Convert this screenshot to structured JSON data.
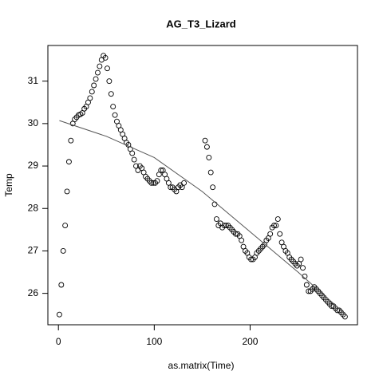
{
  "chart_data": {
    "type": "scatter",
    "title": "AG_T3_Lizard",
    "x_label": "as.matrix(Time)",
    "y_label": "Temp",
    "xlim": [
      -11,
      312
    ],
    "ylim": [
      25.26,
      31.84
    ],
    "xticks": [
      0,
      100,
      200
    ],
    "yticks": [
      26,
      27,
      28,
      29,
      30,
      31
    ],
    "series": [
      {
        "color": "#000000",
        "marker": "open-circle",
        "x": [
          1,
          3,
          5,
          7,
          9,
          11,
          13,
          15,
          17,
          19,
          21,
          23,
          25,
          27,
          29,
          31,
          33,
          35,
          37,
          39,
          41,
          43,
          45,
          47,
          49,
          51,
          53,
          55,
          57,
          59,
          61,
          63,
          65,
          67,
          69,
          71,
          73,
          75,
          77,
          79,
          81,
          83,
          85,
          87,
          89,
          91,
          93,
          95,
          97,
          99,
          101,
          103,
          105,
          107,
          109,
          111,
          113,
          115,
          117,
          119,
          121,
          123,
          125,
          127,
          129,
          131,
          153,
          155,
          157,
          159,
          161,
          163,
          165,
          167,
          169,
          171,
          173,
          175,
          177,
          179,
          181,
          183,
          185,
          187,
          189,
          191,
          193,
          195,
          197,
          199,
          201,
          203,
          205,
          207,
          209,
          211,
          213,
          215,
          217,
          219,
          221,
          223,
          225,
          227,
          229,
          231,
          233,
          235,
          237,
          239,
          241,
          243,
          245,
          247,
          249,
          251,
          253,
          255,
          257,
          259,
          261,
          263,
          265,
          267,
          269,
          271,
          273,
          275,
          277,
          279,
          281,
          283,
          285,
          287,
          289,
          291,
          293,
          295,
          297,
          299
        ],
        "values": [
          25.5,
          26.2,
          27.0,
          27.6,
          28.4,
          29.1,
          29.6,
          30.0,
          30.1,
          30.15,
          30.2,
          30.22,
          30.25,
          30.35,
          30.4,
          30.5,
          30.6,
          30.75,
          30.9,
          31.05,
          31.2,
          31.35,
          31.5,
          31.6,
          31.55,
          31.3,
          31.0,
          30.7,
          30.4,
          30.2,
          30.05,
          29.95,
          29.85,
          29.75,
          29.65,
          29.55,
          29.5,
          29.4,
          29.3,
          29.15,
          29.0,
          28.9,
          29.0,
          28.95,
          28.85,
          28.75,
          28.7,
          28.65,
          28.6,
          28.6,
          28.6,
          28.65,
          28.8,
          28.9,
          28.9,
          28.8,
          28.7,
          28.6,
          28.5,
          28.5,
          28.45,
          28.4,
          28.5,
          28.55,
          28.5,
          28.6,
          29.6,
          29.45,
          29.2,
          28.85,
          28.5,
          28.1,
          27.75,
          27.6,
          27.65,
          27.55,
          27.6,
          27.6,
          27.6,
          27.55,
          27.5,
          27.45,
          27.4,
          27.4,
          27.35,
          27.25,
          27.1,
          27.0,
          26.95,
          26.85,
          26.8,
          26.8,
          26.85,
          26.95,
          27.0,
          27.05,
          27.1,
          27.15,
          27.25,
          27.3,
          27.4,
          27.55,
          27.6,
          27.6,
          27.75,
          27.4,
          27.2,
          27.1,
          27.0,
          26.95,
          26.85,
          26.8,
          26.75,
          26.7,
          26.65,
          26.7,
          26.8,
          26.6,
          26.4,
          26.2,
          26.05,
          26.05,
          26.1,
          26.15,
          26.1,
          26.05,
          26.0,
          25.95,
          25.9,
          25.85,
          25.8,
          25.75,
          25.7,
          25.7,
          25.65,
          25.6,
          25.6,
          25.55,
          25.5,
          25.45
        ]
      }
    ],
    "fit": {
      "color": "#555555",
      "x": [
        1,
        50,
        100,
        150,
        200,
        250,
        300
      ],
      "values": [
        30.07,
        29.7,
        29.2,
        28.4,
        27.45,
        26.5,
        25.5
      ]
    }
  }
}
